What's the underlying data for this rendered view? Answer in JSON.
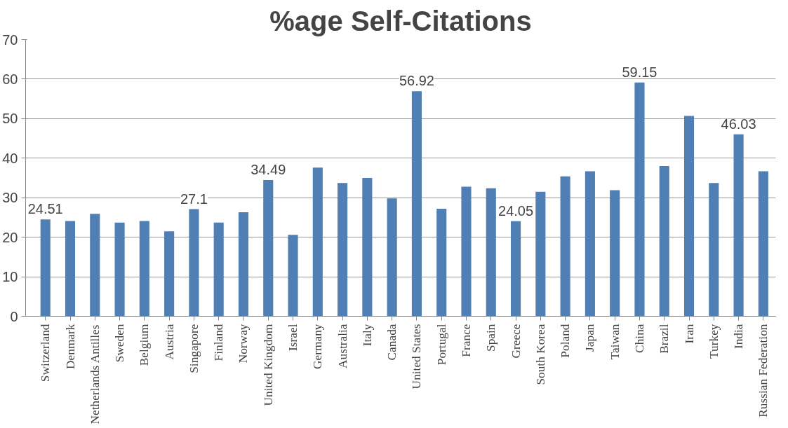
{
  "chart_data": {
    "type": "bar",
    "title": "%age Self-Citations",
    "categories": [
      "Switzerland",
      "Denmark",
      "Netherlands Antilles",
      "Sweden",
      "Belgium",
      "Austria",
      "Singapore",
      "Finland",
      "Norway",
      "United Kingdom",
      "Israel",
      "Germany",
      "Australia",
      "Italy",
      "Canada",
      "United States",
      "Portugal",
      "France",
      "Spain",
      "Greece",
      "South Korea",
      "Poland",
      "Japan",
      "Taiwan",
      "China",
      "Brazil",
      "Iran",
      "Turkey",
      "India",
      "Russian Federation"
    ],
    "values": [
      24.51,
      24.1,
      25.9,
      23.7,
      24.1,
      21.5,
      27.1,
      23.7,
      26.3,
      34.49,
      20.6,
      37.6,
      33.7,
      35.0,
      29.8,
      56.92,
      27.2,
      32.8,
      32.4,
      24.05,
      31.5,
      35.4,
      36.7,
      31.9,
      59.15,
      38.0,
      50.7,
      33.7,
      46.03,
      36.7
    ],
    "value_labels": [
      "24.51",
      null,
      null,
      null,
      null,
      null,
      "27.1",
      null,
      null,
      "34.49",
      null,
      null,
      null,
      null,
      null,
      "56.92",
      null,
      null,
      null,
      "24.05",
      null,
      null,
      null,
      null,
      "59.15",
      null,
      null,
      null,
      "46.03",
      null
    ],
    "color": "#4f7fb4",
    "ylim": [
      0,
      70
    ],
    "yticks": [
      0,
      10,
      20,
      30,
      40,
      50,
      60,
      70
    ],
    "grid": "y"
  }
}
